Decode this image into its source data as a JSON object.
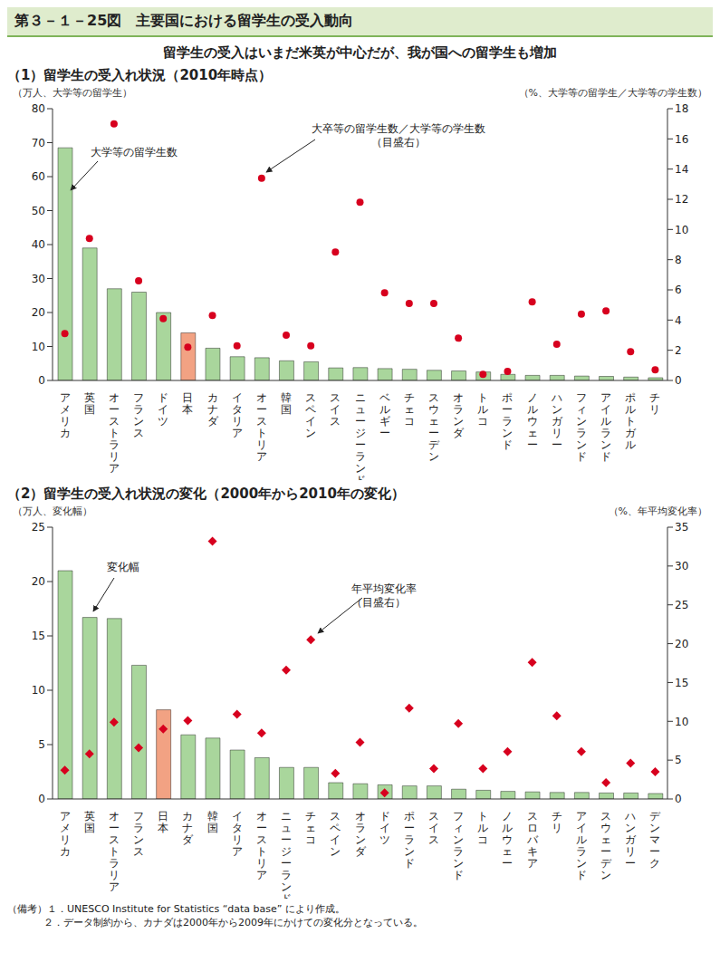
{
  "title": "第３－１－25図　主要国における留学生の受入動向",
  "subtitle": "留学生の受入はいまだ米英が中心だが、我が国への留学生も増加",
  "notes": [
    "（備考）１．UNESCO Institute for Statistics “data base” により作成。",
    "２．データ制約から、カナダは2000年から2009年にかけての変化分となっている。"
  ],
  "chart_data": [
    {
      "type": "bar",
      "title": "（1）留学生の受入れ状況（2010年時点）",
      "ylabel": "（万人、大学等の留学生）",
      "y2label": "（%、大学等の留学生／大学等の学生数）",
      "categories": [
        "アメリカ",
        "英国",
        "オーストラリア",
        "フランス",
        "ドイツ",
        "日本",
        "カナダ",
        "イタリア",
        "オーストリア",
        "韓国",
        "スペイン",
        "スイス",
        "ニュージーランド",
        "ベルギー",
        "チェコ",
        "スウェーデン",
        "オランダ",
        "トルコ",
        "ポーランド",
        "ノルウェー",
        "ハンガリー",
        "フィンランド",
        "アイルランド",
        "ポルトガル",
        "チリ"
      ],
      "series": [
        {
          "name": "大学等の留学生数",
          "type": "bar",
          "colors": [
            "#a9d69c",
            "#a9d69c",
            "#a9d69c",
            "#a9d69c",
            "#a9d69c",
            "#f2a283",
            "#a9d69c",
            "#a9d69c",
            "#a9d69c",
            "#a9d69c",
            "#a9d69c",
            "#a9d69c",
            "#a9d69c",
            "#a9d69c",
            "#a9d69c",
            "#a9d69c",
            "#a9d69c",
            "#a9d69c",
            "#a9d69c",
            "#a9d69c",
            "#a9d69c",
            "#a9d69c",
            "#a9d69c",
            "#a9d69c",
            "#a9d69c"
          ],
          "values": [
            68.5,
            39,
            27,
            26,
            20,
            14,
            9.5,
            7,
            6.7,
            5.8,
            5.5,
            3.7,
            3.8,
            3.5,
            3.3,
            3.0,
            2.8,
            2.5,
            1.8,
            1.5,
            1.5,
            1.3,
            1.2,
            1.0,
            0.8
          ]
        },
        {
          "name": "大卒等の留学生数／大学等の学生数（目盛右）",
          "type": "scatter",
          "axis": "y2",
          "color": "#d7001e",
          "marker": "circle",
          "values": [
            3.1,
            9.4,
            17.0,
            6.6,
            4.1,
            2.2,
            4.3,
            2.3,
            13.4,
            3.0,
            2.3,
            8.5,
            11.8,
            5.8,
            5.1,
            5.1,
            2.8,
            0.4,
            0.6,
            5.2,
            2.4,
            4.4,
            4.6,
            1.9,
            0.7
          ]
        }
      ],
      "ylim": [
        0,
        80
      ],
      "yticks": [
        0,
        10,
        20,
        30,
        40,
        50,
        60,
        70,
        80
      ],
      "y2lim": [
        0,
        18
      ],
      "y2ticks": [
        0,
        2,
        4,
        6,
        8,
        10,
        12,
        14,
        16,
        18
      ]
    },
    {
      "type": "bar",
      "title": "（2）留学生の受入れ状況の変化（2000年から2010年の変化）",
      "ylabel": "（万人、変化幅）",
      "y2label": "（%、年平均変化率）",
      "categories": [
        "アメリカ",
        "英国",
        "オーストラリア",
        "フランス",
        "日本",
        "カナダ",
        "韓国",
        "イタリア",
        "オーストリア",
        "ニュージーランド",
        "チェコ",
        "スペイン",
        "オランダ",
        "ドイツ",
        "ポーランド",
        "スイス",
        "フィンランド",
        "トルコ",
        "ノルウェー",
        "スロバキア",
        "チリ",
        "アイルランド",
        "スウェーデン",
        "ハンガリー",
        "デンマーク"
      ],
      "series": [
        {
          "name": "変化幅",
          "type": "bar",
          "colors": [
            "#a9d69c",
            "#a9d69c",
            "#a9d69c",
            "#a9d69c",
            "#f2a283",
            "#a9d69c",
            "#a9d69c",
            "#a9d69c",
            "#a9d69c",
            "#a9d69c",
            "#a9d69c",
            "#a9d69c",
            "#a9d69c",
            "#a9d69c",
            "#a9d69c",
            "#a9d69c",
            "#a9d69c",
            "#a9d69c",
            "#a9d69c",
            "#a9d69c",
            "#a9d69c",
            "#a9d69c",
            "#a9d69c",
            "#a9d69c",
            "#a9d69c"
          ],
          "values": [
            21,
            16.7,
            16.6,
            12.3,
            8.2,
            5.9,
            5.6,
            4.5,
            3.8,
            2.9,
            2.9,
            1.5,
            1.4,
            1.3,
            1.2,
            1.2,
            0.9,
            0.8,
            0.7,
            0.65,
            0.6,
            0.6,
            0.55,
            0.55,
            0.5
          ]
        },
        {
          "name": "年平均変化率（目盛右）",
          "type": "scatter",
          "axis": "y2",
          "color": "#d7001e",
          "marker": "diamond",
          "values": [
            3.7,
            5.8,
            9.9,
            6.6,
            9.0,
            10.1,
            33.2,
            10.9,
            8.5,
            16.6,
            20.5,
            3.3,
            7.3,
            0.8,
            11.7,
            3.9,
            9.7,
            3.9,
            6.1,
            17.6,
            10.7,
            6.1,
            2.1,
            4.6,
            3.5
          ]
        }
      ],
      "ylim": [
        0,
        25
      ],
      "yticks": [
        0,
        5,
        10,
        15,
        20,
        25
      ],
      "y2lim": [
        0,
        35
      ],
      "y2ticks": [
        0,
        5,
        10,
        15,
        20,
        25,
        30,
        35
      ]
    }
  ]
}
